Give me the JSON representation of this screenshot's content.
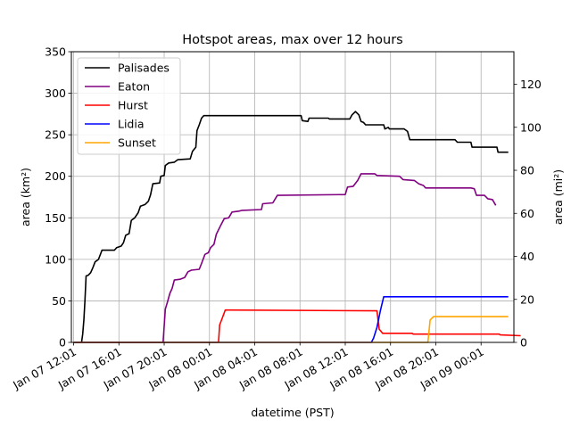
{
  "chart_data": {
    "type": "line",
    "title": "Hotspot areas, max over 12 hours",
    "xlabel": "datetime (PST)",
    "ylabel": "area (km²)",
    "ylabel_right": "area (mi²)",
    "x_unit": "hours after Jan 07 12:01 PST",
    "xlim": [
      -0.2,
      38.9
    ],
    "ylim": [
      0,
      350
    ],
    "ylim_right": [
      0,
      135.14
    ],
    "y_ticks": [
      0,
      50,
      100,
      150,
      200,
      250,
      300,
      350
    ],
    "y_ticks_right": [
      0,
      20,
      40,
      60,
      80,
      100,
      120
    ],
    "x_ticks": [
      0,
      4,
      8,
      12,
      16,
      20,
      24,
      28,
      32,
      36
    ],
    "x_tick_labels": [
      "Jan 07 12:01",
      "Jan 07 16:01",
      "Jan 07 20:01",
      "Jan 08 00:01",
      "Jan 08 04:01",
      "Jan 08 08:01",
      "Jan 08 12:01",
      "Jan 08 16:01",
      "Jan 08 20:01",
      "Jan 09 00:01"
    ],
    "grid": true,
    "legend_position": "top-left",
    "series": [
      {
        "name": "Palisades",
        "color": "#000000",
        "points": [
          [
            0.0,
            0
          ],
          [
            0.7,
            0
          ],
          [
            0.8,
            10
          ],
          [
            0.9,
            27
          ],
          [
            1.0,
            50
          ],
          [
            1.1,
            80
          ],
          [
            1.3,
            81
          ],
          [
            1.5,
            84
          ],
          [
            1.7,
            90
          ],
          [
            1.9,
            97
          ],
          [
            2.2,
            100
          ],
          [
            2.5,
            111
          ],
          [
            3.6,
            111
          ],
          [
            3.8,
            114
          ],
          [
            4.2,
            116
          ],
          [
            4.4,
            120
          ],
          [
            4.6,
            129
          ],
          [
            4.9,
            131
          ],
          [
            5.1,
            147
          ],
          [
            5.4,
            150
          ],
          [
            5.7,
            156
          ],
          [
            5.9,
            164
          ],
          [
            6.3,
            166
          ],
          [
            6.6,
            170
          ],
          [
            6.8,
            178
          ],
          [
            7.0,
            191
          ],
          [
            7.6,
            192
          ],
          [
            7.7,
            200
          ],
          [
            8.0,
            201
          ],
          [
            8.1,
            213
          ],
          [
            8.4,
            216
          ],
          [
            8.9,
            217
          ],
          [
            9.2,
            220
          ],
          [
            10.3,
            221
          ],
          [
            10.5,
            230
          ],
          [
            10.8,
            235
          ],
          [
            10.9,
            255
          ],
          [
            11.1,
            262
          ],
          [
            11.3,
            270
          ],
          [
            11.5,
            273
          ],
          [
            20.1,
            273
          ],
          [
            20.2,
            267
          ],
          [
            20.7,
            266
          ],
          [
            20.8,
            270
          ],
          [
            22.5,
            270
          ],
          [
            22.6,
            269
          ],
          [
            24.4,
            269
          ],
          [
            24.6,
            274
          ],
          [
            24.9,
            278
          ],
          [
            25.2,
            274
          ],
          [
            25.4,
            266
          ],
          [
            25.6,
            265
          ],
          [
            25.8,
            262
          ],
          [
            27.4,
            262
          ],
          [
            27.5,
            257
          ],
          [
            27.8,
            259
          ],
          [
            27.9,
            257
          ],
          [
            29.2,
            257
          ],
          [
            29.5,
            254
          ],
          [
            29.7,
            244
          ],
          [
            33.7,
            244
          ],
          [
            33.9,
            241
          ],
          [
            35.1,
            241
          ],
          [
            35.2,
            235
          ],
          [
            37.4,
            235
          ],
          [
            37.5,
            229
          ],
          [
            38.4,
            229
          ]
        ]
      },
      {
        "name": "Eaton",
        "color": "#800080",
        "points": [
          [
            0.0,
            0
          ],
          [
            7.9,
            0
          ],
          [
            8.1,
            40
          ],
          [
            8.3,
            49
          ],
          [
            8.5,
            59
          ],
          [
            8.7,
            65
          ],
          [
            8.9,
            75
          ],
          [
            9.4,
            76
          ],
          [
            9.8,
            78
          ],
          [
            10.1,
            85
          ],
          [
            10.4,
            87
          ],
          [
            11.1,
            88
          ],
          [
            11.3,
            95
          ],
          [
            11.6,
            106
          ],
          [
            11.9,
            108
          ],
          [
            12.1,
            114
          ],
          [
            12.4,
            118
          ],
          [
            12.6,
            130
          ],
          [
            13.0,
            141
          ],
          [
            13.3,
            149
          ],
          [
            13.7,
            150
          ],
          [
            14.0,
            157
          ],
          [
            14.6,
            158
          ],
          [
            14.9,
            159
          ],
          [
            16.6,
            160
          ],
          [
            16.7,
            167
          ],
          [
            17.6,
            168
          ],
          [
            18.0,
            177
          ],
          [
            24.0,
            178
          ],
          [
            24.2,
            187
          ],
          [
            24.7,
            188
          ],
          [
            25.1,
            195
          ],
          [
            25.4,
            203
          ],
          [
            26.6,
            203
          ],
          [
            26.8,
            201
          ],
          [
            28.8,
            200
          ],
          [
            29.1,
            196
          ],
          [
            30.1,
            195
          ],
          [
            30.5,
            191
          ],
          [
            30.9,
            189
          ],
          [
            31.1,
            186
          ],
          [
            35.1,
            186
          ],
          [
            35.4,
            185
          ],
          [
            35.6,
            177
          ],
          [
            36.3,
            177
          ],
          [
            36.6,
            173
          ],
          [
            37.0,
            172
          ],
          [
            37.3,
            165
          ]
        ]
      },
      {
        "name": "Hurst",
        "color": "#ff0000",
        "points": [
          [
            0.0,
            0
          ],
          [
            12.8,
            0
          ],
          [
            12.9,
            21
          ],
          [
            13.1,
            28
          ],
          [
            13.4,
            39
          ],
          [
            26.8,
            38
          ],
          [
            27.0,
            16
          ],
          [
            27.3,
            11
          ],
          [
            29.9,
            11
          ],
          [
            30.0,
            10
          ],
          [
            37.6,
            10
          ],
          [
            37.7,
            9
          ],
          [
            39.5,
            8
          ]
        ]
      },
      {
        "name": "Lidia",
        "color": "#0000ff",
        "points": [
          [
            0.0,
            0
          ],
          [
            26.3,
            0
          ],
          [
            26.5,
            5
          ],
          [
            26.8,
            18
          ],
          [
            27.1,
            38
          ],
          [
            27.4,
            55
          ],
          [
            38.4,
            55
          ]
        ]
      },
      {
        "name": "Sunset",
        "color": "#ffa500",
        "points": [
          [
            0.0,
            0
          ],
          [
            31.3,
            0
          ],
          [
            31.5,
            27
          ],
          [
            31.8,
            31
          ],
          [
            38.4,
            31
          ]
        ]
      }
    ]
  }
}
